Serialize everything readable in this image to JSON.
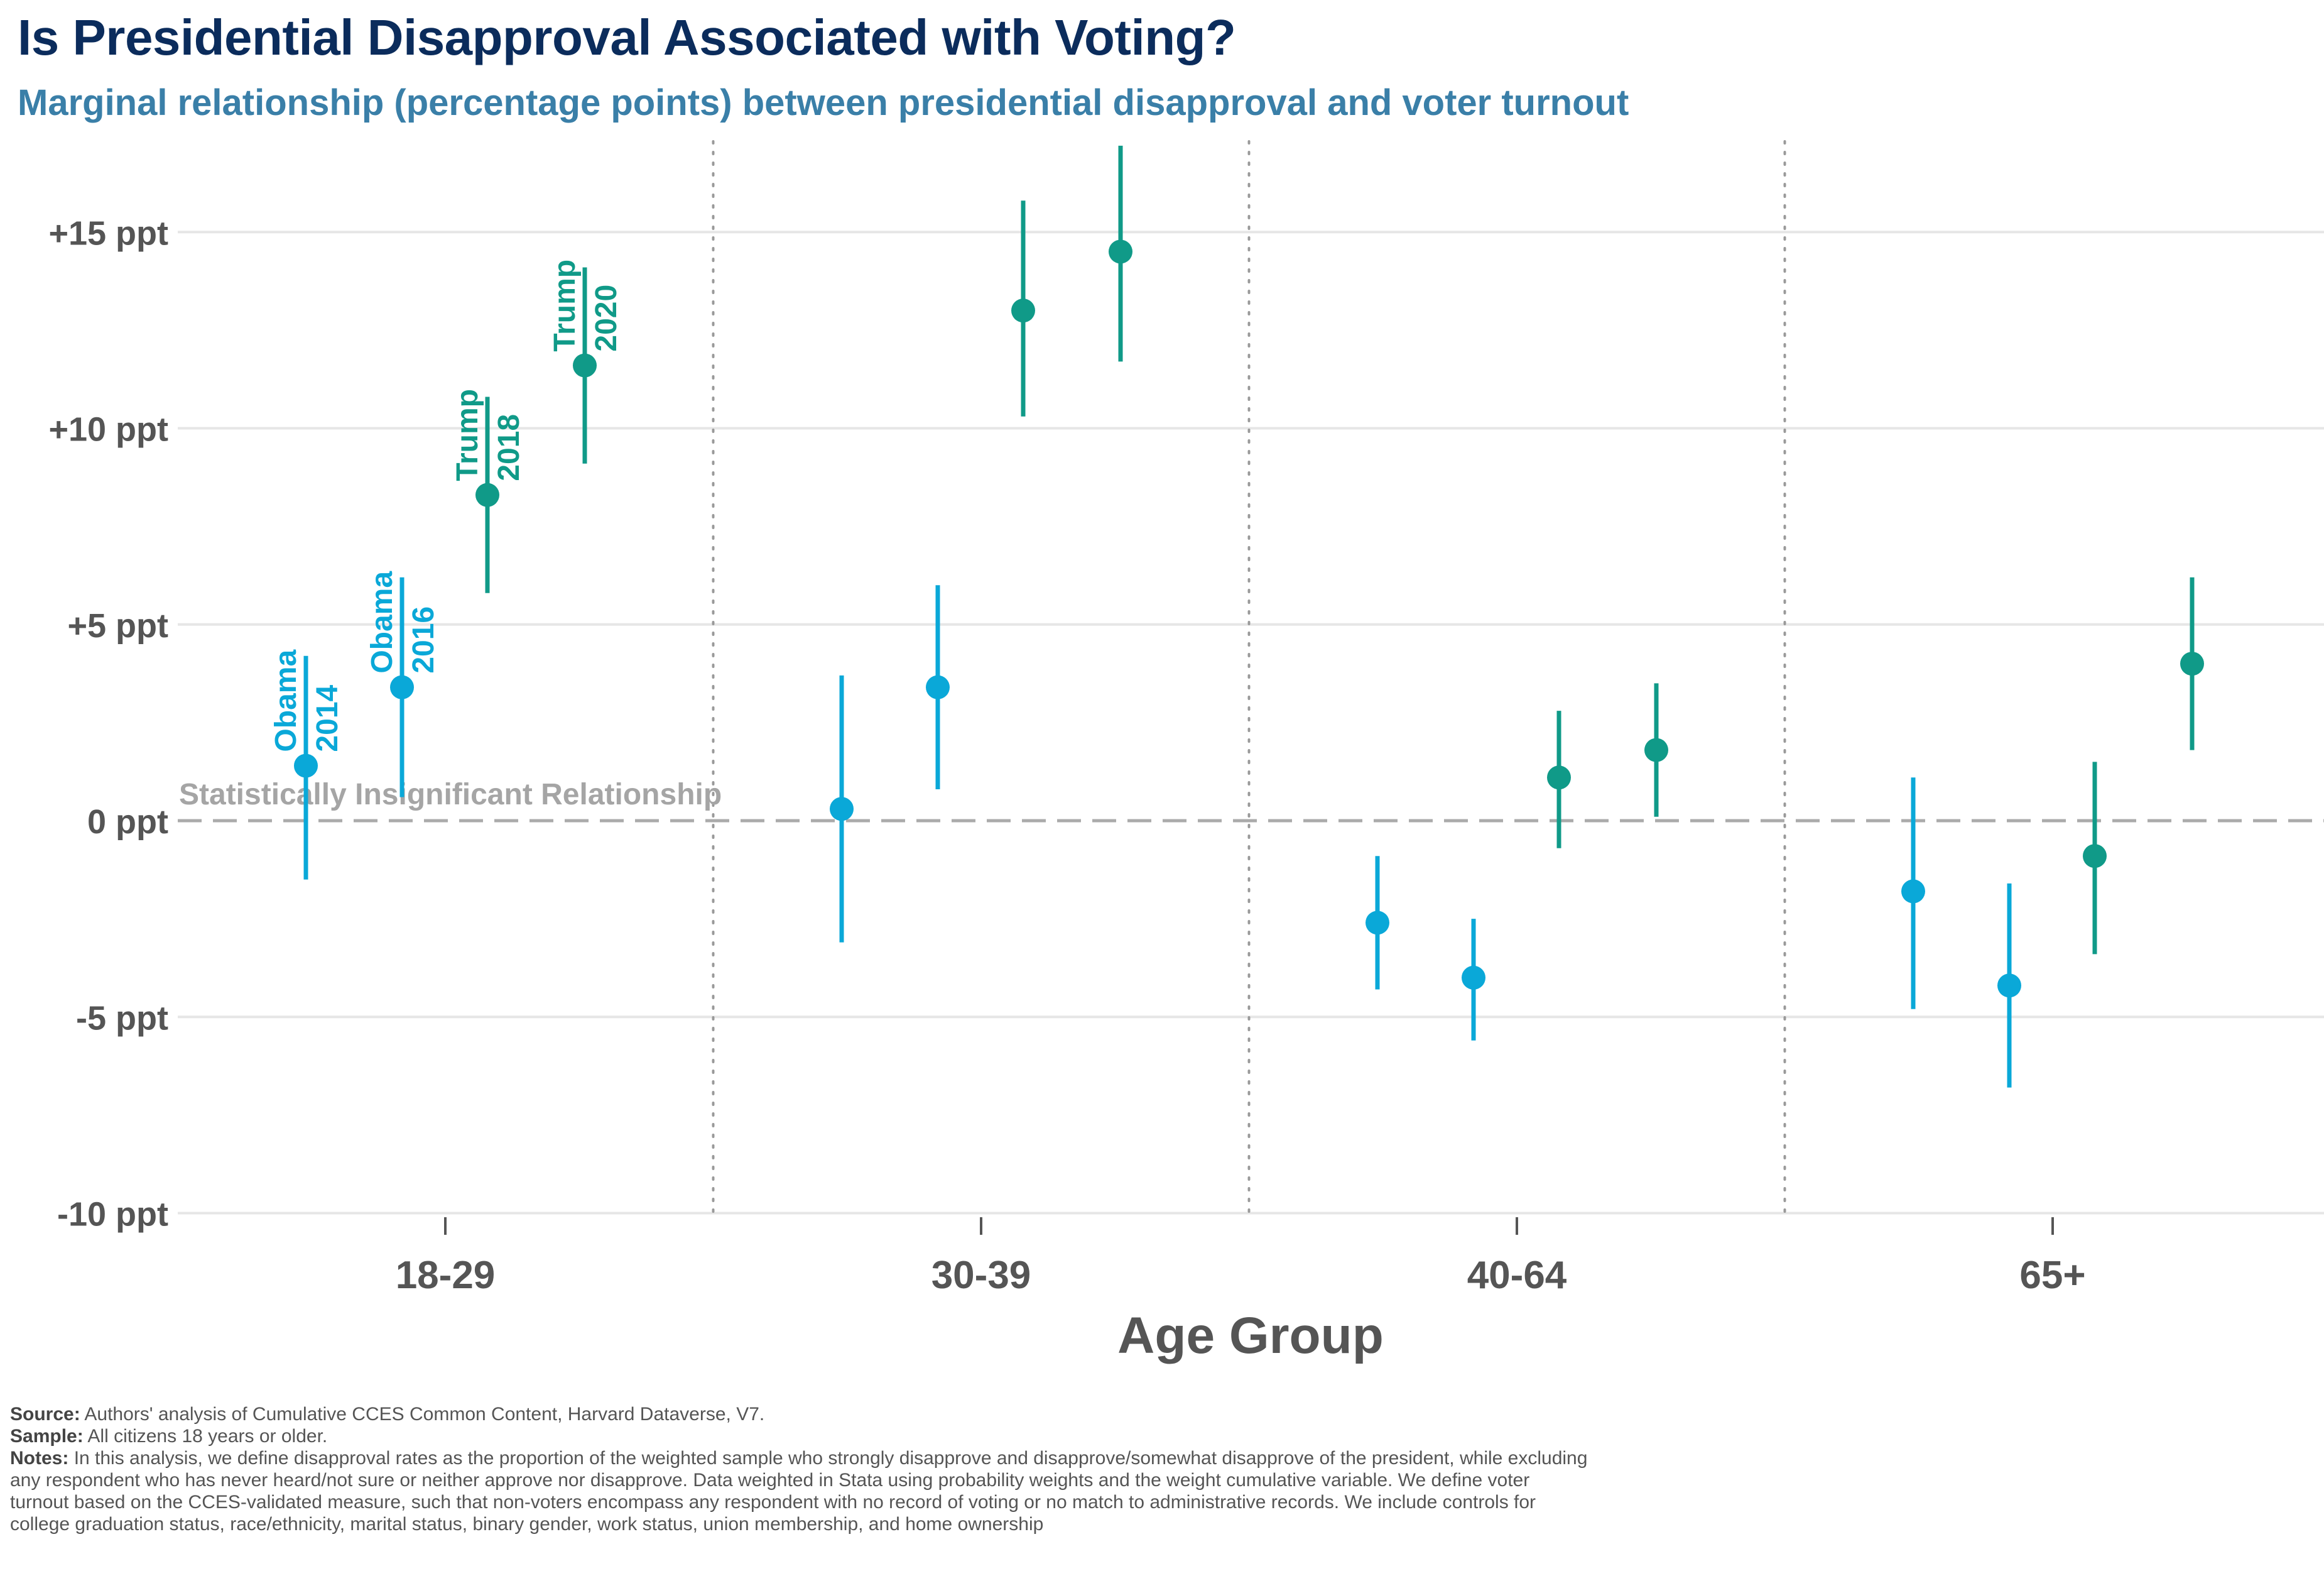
{
  "title": "Is Presidential Disapproval Associated with Voting?",
  "subtitle": "Marginal relationship (percentage points) between presidential disapproval and voter turnout",
  "chart_data": {
    "type": "scatter",
    "subtype": "point-range",
    "title": "Is Presidential Disapproval Associated with Voting?",
    "subtitle": "Marginal relationship (percentage points) between presidential disapproval and voter turnout",
    "xlabel": "Age Group",
    "ylabel": "",
    "categories": [
      "18-29",
      "30-39",
      "40-64",
      "65+"
    ],
    "ylim": [
      -10,
      16.5
    ],
    "yticks": [
      15,
      10,
      5,
      0,
      -5,
      -10
    ],
    "ytick_labels": [
      "+15 ppt",
      "+10 ppt",
      "+5 ppt",
      "0 ppt",
      "-5 ppt",
      "-10 ppt"
    ],
    "grid": true,
    "reference_line": {
      "y": 0,
      "label": "Statistically Insignificant Relationship"
    },
    "colors": {
      "Obama": "#0aa8d8",
      "Trump": "#109a88"
    },
    "series": [
      {
        "name": "Obama 2014",
        "president": "Obama",
        "year": "2014",
        "values": [
          1.4,
          0.3,
          -2.6,
          -1.8
        ],
        "lower": [
          -1.5,
          -3.1,
          -4.3,
          -4.8
        ],
        "upper": [
          4.2,
          3.7,
          -0.9,
          1.1
        ]
      },
      {
        "name": "Obama 2016",
        "president": "Obama",
        "year": "2016",
        "values": [
          3.4,
          3.4,
          -4.0,
          -4.2
        ],
        "lower": [
          0.6,
          0.8,
          -5.6,
          -6.8
        ],
        "upper": [
          6.2,
          6.0,
          -2.5,
          -1.6
        ]
      },
      {
        "name": "Trump 2018",
        "president": "Trump",
        "year": "2018",
        "values": [
          8.3,
          13.0,
          1.1,
          -0.9
        ],
        "lower": [
          5.8,
          10.3,
          -0.7,
          -3.4
        ],
        "upper": [
          10.8,
          15.8,
          2.8,
          1.5
        ]
      },
      {
        "name": "Trump 2020",
        "president": "Trump",
        "year": "2020",
        "values": [
          11.6,
          14.5,
          1.8,
          4.0
        ],
        "lower": [
          9.1,
          11.7,
          0.1,
          1.8
        ],
        "upper": [
          14.1,
          17.2,
          3.5,
          6.2
        ]
      }
    ],
    "annotations": [
      "Obama 2014",
      "Obama 2016",
      "Trump 2018",
      "Trump 2020"
    ]
  },
  "notes": {
    "source_label": "Source:",
    "source_text": "Authors' analysis of Cumulative CCES Common Content, Harvard Dataverse, V7.",
    "sample_label": "Sample:",
    "sample_text": "All citizens 18 years or older.",
    "notes_label": "Notes:",
    "notes_text": "In this analysis, we define disapproval rates as the proportion of the weighted sample who strongly disapprove and disapprove/somewhat disapprove of the president, while excluding any respondent who has never heard/not sure or neither approve nor disapprove. Data weighted in Stata using probability weights and the weight cumulative variable. We define voter turnout based on the CCES-validated measure, such that non-voters encompass any respondent with no record of voting or no match to administrative records. We include controls for college graduation status, race/ethnicity, marital status, binary gender, work status, union membership, and home ownership"
  }
}
